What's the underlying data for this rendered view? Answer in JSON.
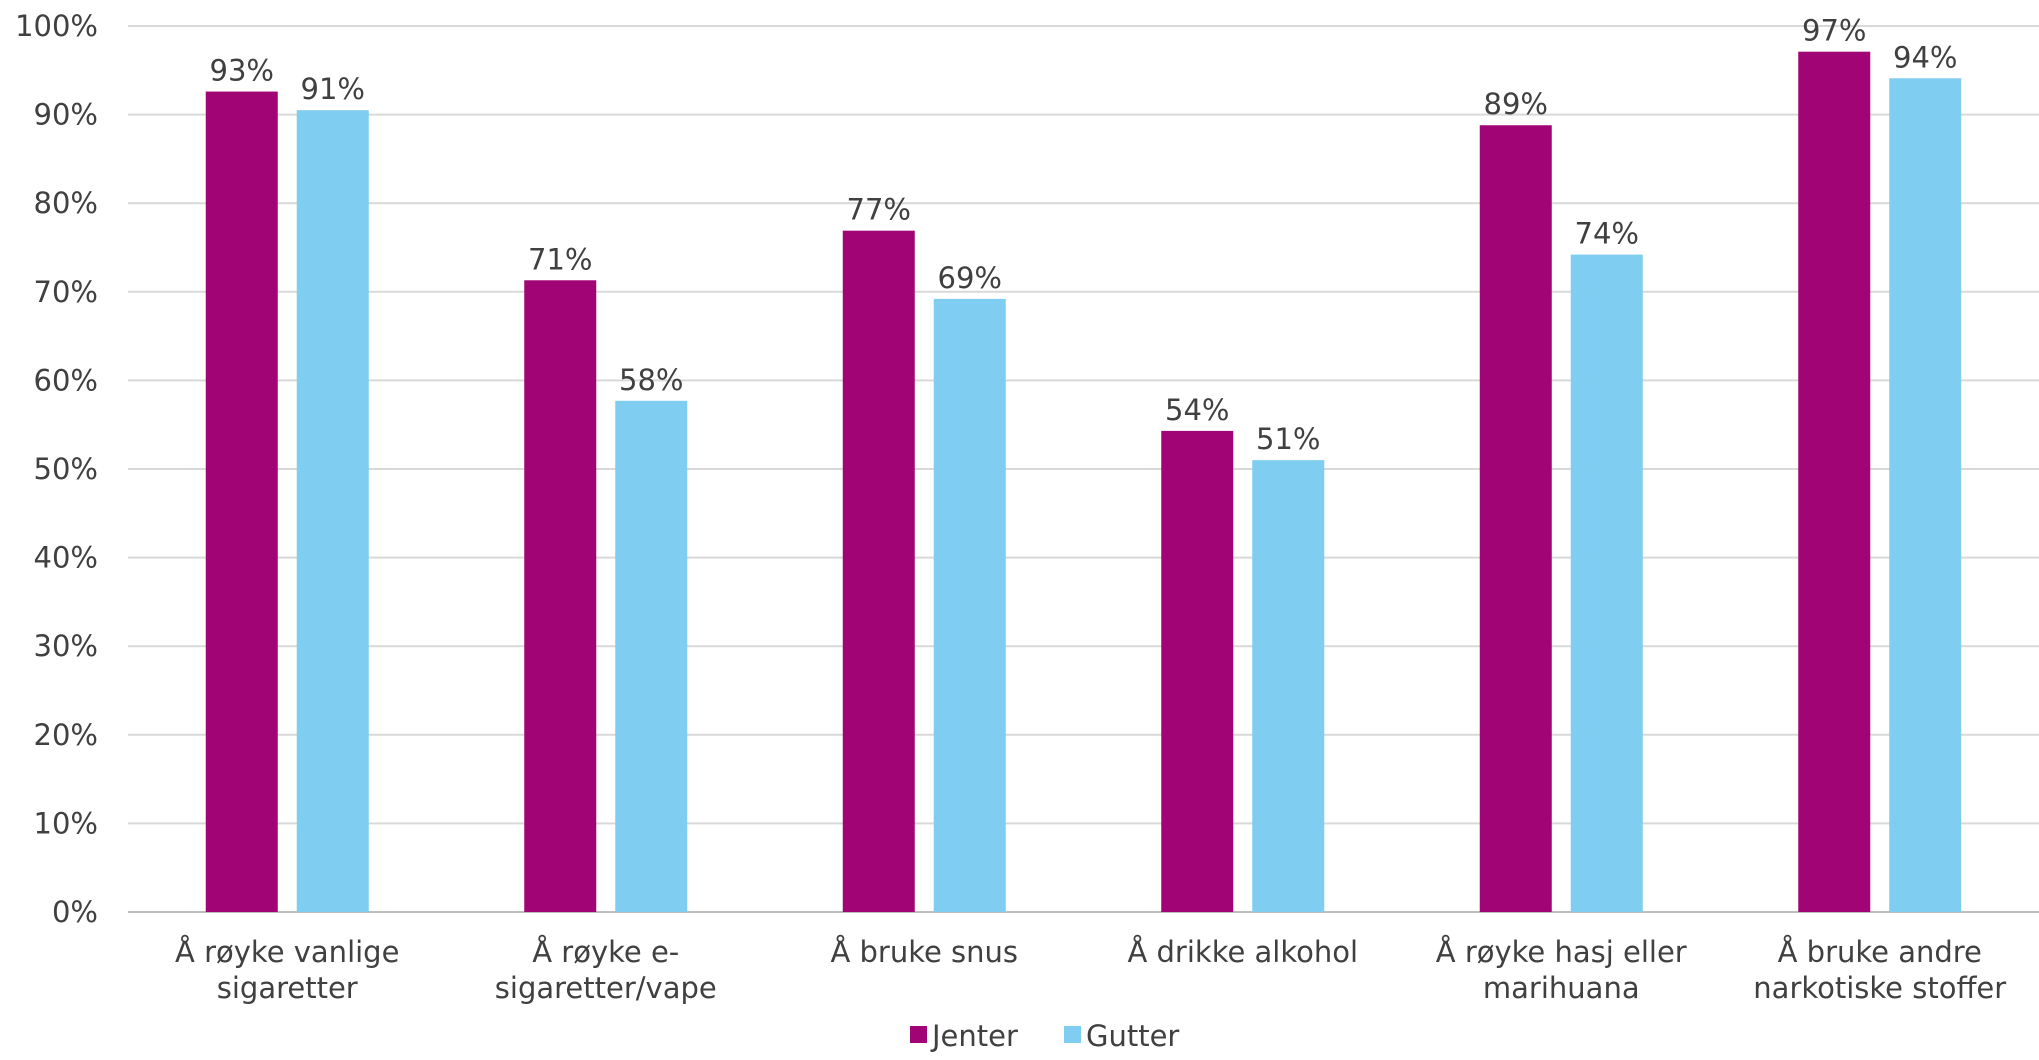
{
  "chart_data": {
    "type": "bar",
    "title": "",
    "xlabel": "",
    "ylabel": "",
    "ylim": [
      0,
      100
    ],
    "y_ticks": [
      0,
      10,
      20,
      30,
      40,
      50,
      60,
      70,
      80,
      90,
      100
    ],
    "y_tick_labels": [
      "0%",
      "10%",
      "20%",
      "30%",
      "40%",
      "50%",
      "60%",
      "70%",
      "80%",
      "90%",
      "100%"
    ],
    "grid": true,
    "legend_position": "bottom",
    "categories": [
      [
        "Å røyke vanlige",
        "sigaretter"
      ],
      [
        "Å røyke e-",
        "sigaretter/vape"
      ],
      [
        "Å bruke snus"
      ],
      [
        "Å drikke alkohol"
      ],
      [
        "Å røyke hasj eller",
        "marihuana"
      ],
      [
        "Å bruke andre",
        "narkotiske stoffer"
      ]
    ],
    "series": [
      {
        "name": "Jenter",
        "color": "#a10474",
        "values": [
          92.6,
          71.3,
          76.9,
          54.3,
          88.8,
          97.1
        ],
        "labels": [
          "93%",
          "71%",
          "77%",
          "54%",
          "89%",
          "97%"
        ]
      },
      {
        "name": "Gutter",
        "color": "#7fcdf0",
        "values": [
          90.5,
          57.7,
          69.2,
          51.0,
          74.2,
          94.1
        ],
        "labels": [
          "91%",
          "58%",
          "69%",
          "51%",
          "74%",
          "94%"
        ]
      }
    ]
  }
}
